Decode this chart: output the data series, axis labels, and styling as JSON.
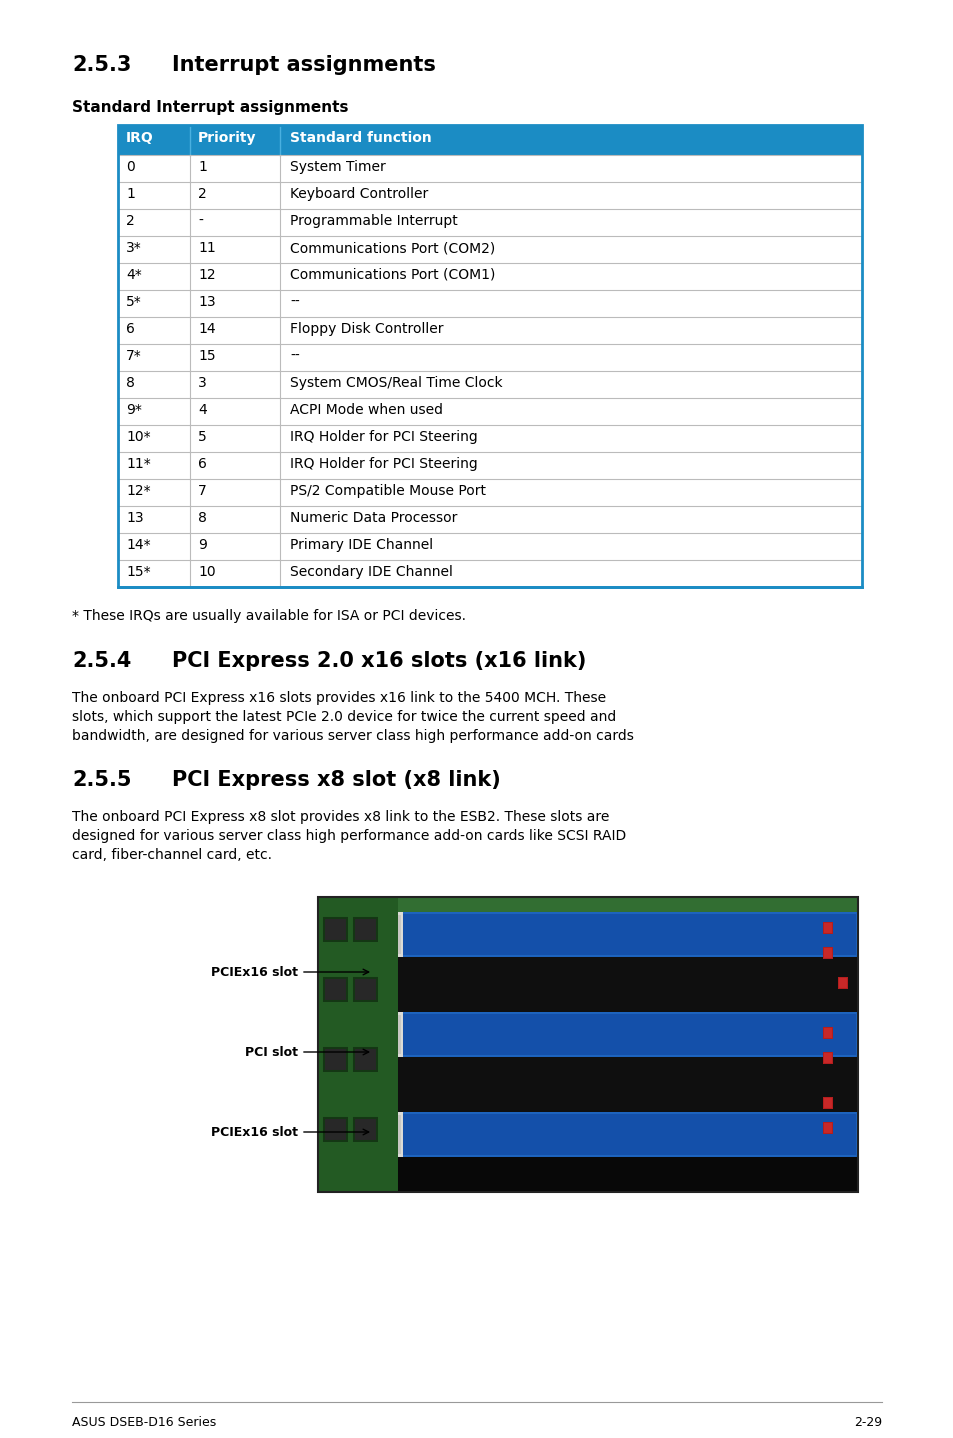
{
  "section_253": "2.5.3",
  "section_253_title": "Interrupt assignments",
  "section_254": "2.5.4",
  "section_254_title": "PCI Express 2.0 x16 slots (x16 link)",
  "section_255": "2.5.5",
  "section_255_title": "PCI Express x8 slot (x8 link)",
  "subtitle": "Standard Interrupt assignments",
  "header_bg": "#1b8cc4",
  "header_text_color": "#ffffff",
  "table_border_color": "#1b8cc4",
  "row_divider_color": "#bbbbbb",
  "headers": [
    "IRQ",
    "Priority",
    "Standard function"
  ],
  "rows": [
    [
      "0",
      "1",
      "System Timer"
    ],
    [
      "1",
      "2",
      "Keyboard Controller"
    ],
    [
      "2",
      "-",
      "Programmable Interrupt"
    ],
    [
      "3*",
      "11",
      "Communications Port (COM2)"
    ],
    [
      "4*",
      "12",
      "Communications Port (COM1)"
    ],
    [
      "5*",
      "13",
      "--"
    ],
    [
      "6",
      "14",
      "Floppy Disk Controller"
    ],
    [
      "7*",
      "15",
      "--"
    ],
    [
      "8",
      "3",
      "System CMOS/Real Time Clock"
    ],
    [
      "9*",
      "4",
      "ACPI Mode when used"
    ],
    [
      "10*",
      "5",
      "IRQ Holder for PCI Steering"
    ],
    [
      "11*",
      "6",
      "IRQ Holder for PCI Steering"
    ],
    [
      "12*",
      "7",
      "PS/2 Compatible Mouse Port"
    ],
    [
      "13",
      "8",
      "Numeric Data Processor"
    ],
    [
      "14*",
      "9",
      "Primary IDE Channel"
    ],
    [
      "15*",
      "10",
      "Secondary IDE Channel"
    ]
  ],
  "footnote": "* These IRQs are usually available for ISA or PCI devices.",
  "text_254_lines": [
    "The onboard PCI Express x16 slots provides x16 link to the 5400 MCH. These",
    "slots, which support the latest PCIe 2.0 device for twice the current speed and",
    "bandwidth, are designed for various server class high performance add-on cards"
  ],
  "text_255_lines": [
    "The onboard PCI Express x8 slot provides x8 link to the ESB2. These slots are",
    "designed for various server class high performance add-on cards like SCSI RAID",
    "card, fiber-channel card, etc."
  ],
  "labels": [
    "PCIEx16 slot",
    "PCI slot",
    "PCIEx16 slot"
  ],
  "footer_left": "ASUS DSEB-D16 Series",
  "footer_right": "2-29",
  "bg_color": "#ffffff",
  "text_color": "#000000"
}
